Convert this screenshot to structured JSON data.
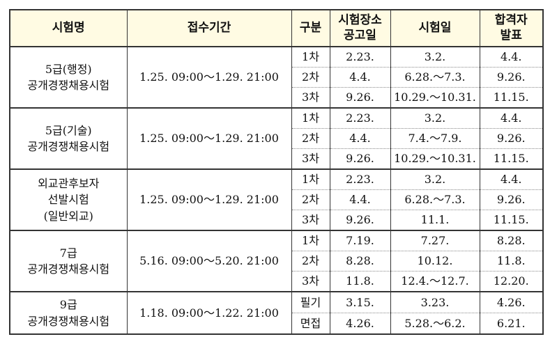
{
  "headers": {
    "name": "시험명",
    "period": "접수기간",
    "stage": "구분",
    "venue_line1": "시험장소",
    "venue_line2": "공고일",
    "exam_date": "시험일",
    "result_line1": "합격자",
    "result_line2": "발표"
  },
  "exams": [
    {
      "name_lines": [
        "5급(행정)",
        "공개경쟁채용시험"
      ],
      "period": "1.25.  09:00～1.29.  21:00",
      "rows": [
        {
          "stage": "1차",
          "venue": "2.23.",
          "date": "3.2.",
          "result": "4.4."
        },
        {
          "stage": "2차",
          "venue": "4.4.",
          "date": "6.28.～7.3.",
          "result": "9.26."
        },
        {
          "stage": "3차",
          "venue": "9.26.",
          "date": "10.29.～10.31.",
          "result": "11.15."
        }
      ]
    },
    {
      "name_lines": [
        "5급(기술)",
        "공개경쟁채용시험"
      ],
      "period": "1.25.  09:00～1.29.  21:00",
      "rows": [
        {
          "stage": "1차",
          "venue": "2.23.",
          "date": "3.2.",
          "result": "4.4."
        },
        {
          "stage": "2차",
          "venue": "4.4.",
          "date": "7.4.～7.9.",
          "result": "9.26."
        },
        {
          "stage": "3차",
          "venue": "9.26.",
          "date": "10.29.～10.31.",
          "result": "11.15."
        }
      ]
    },
    {
      "name_lines": [
        "외교관후보자",
        "선발시험",
        "(일반외교)"
      ],
      "period": "1.25.  09:00～1.29.  21:00",
      "rows": [
        {
          "stage": "1차",
          "venue": "2.23.",
          "date": "3.2.",
          "result": "4.4."
        },
        {
          "stage": "2차",
          "venue": "4.4.",
          "date": "6.28.～7.3.",
          "result": "9.26."
        },
        {
          "stage": "3차",
          "venue": "9.26.",
          "date": "11.1.",
          "result": "11.15."
        }
      ]
    },
    {
      "name_lines": [
        "7급",
        "공개경쟁채용시험"
      ],
      "period": "5.16.  09:00～5.20.  21:00",
      "rows": [
        {
          "stage": "1차",
          "venue": "7.19.",
          "date": "7.27.",
          "result": "8.28."
        },
        {
          "stage": "2차",
          "venue": "8.28.",
          "date": "10.12.",
          "result": "11.8."
        },
        {
          "stage": "3차",
          "venue": "11.8.",
          "date": "12.4.～12.7.",
          "result": "12.20."
        }
      ]
    },
    {
      "name_lines": [
        "9급",
        "공개경쟁채용시험"
      ],
      "period": "1.18.  09:00～1.22.  21:00",
      "rows": [
        {
          "stage": "필기",
          "venue": "3.15.",
          "date": "3.23.",
          "result": "4.26."
        },
        {
          "stage": "면접",
          "venue": "4.26.",
          "date": "5.28.～6.2.",
          "result": "6.21."
        }
      ]
    }
  ]
}
